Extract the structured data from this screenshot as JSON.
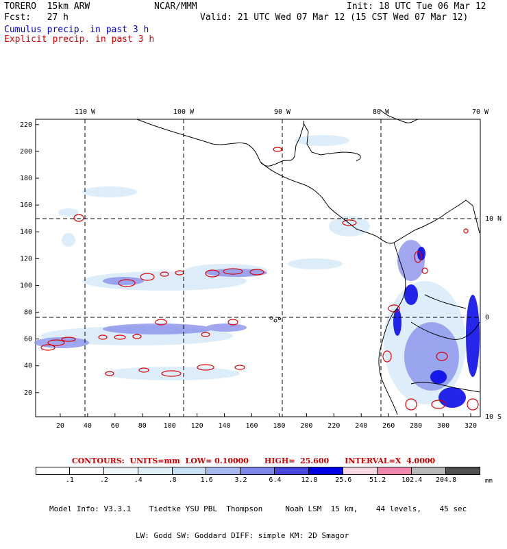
{
  "header": {
    "model": "TORERO  15km ARW",
    "center": "NCAR/MMM",
    "init": "Init: 18 UTC Tue 06 Mar 12",
    "fcst": "Fcst:   27 h",
    "valid": "Valid: 21 UTC Wed 07 Mar 12 (15 CST Wed 07 Mar 12)",
    "legend_cumulus": "Cumulus precip. in past 3 h",
    "legend_explicit": "Explicit precip. in past 3 h"
  },
  "axes": {
    "top_lon_labels": [
      "110 W",
      "100 W",
      "90 W",
      "80 W",
      "70 W"
    ],
    "right_lat_labels": [
      "10 N",
      "0",
      "10 S"
    ],
    "x_ticks": [
      "20",
      "40",
      "60",
      "80",
      "100",
      "120",
      "140",
      "160",
      "180",
      "200",
      "220",
      "240",
      "260",
      "280",
      "300",
      "320"
    ],
    "y_ticks": [
      "20",
      "40",
      "60",
      "80",
      "100",
      "120",
      "140",
      "160",
      "180",
      "200",
      "220"
    ]
  },
  "contours": {
    "text": "CONTOURS:  UNITS=mm  LOW= 0.10000      HIGH=  25.600      INTERVAL=X  4.0000"
  },
  "colorbar": {
    "labels": [
      ".1",
      ".2",
      ".4",
      ".8",
      "1.6",
      "3.2",
      "6.4",
      "12.8",
      "25.6",
      "51.2",
      "102.4",
      "204.8"
    ],
    "colors": [
      "#ffffff",
      "#ffffff",
      "#eef6fa",
      "#dff0f8",
      "#c8e0f4",
      "#a8b8f0",
      "#7f88ea",
      "#4848e0",
      "#0000e6",
      "#f8d8e0",
      "#f088b0",
      "#b8b8b8",
      "#505050",
      "#d8a8f8"
    ],
    "unit": "mm"
  },
  "model_info": {
    "line1": "Model Info: V3.3.1    Tiedtke YSU PBL  Thompson     Noah LSM  15 km,    44 levels,    45 sec",
    "line2": "LW: Godd SW: Goddard DIFF: simple KM: 2D Smagor"
  },
  "colors": {
    "cumulus_contour": "#dd0000",
    "light_precip": "#dfeef8",
    "heavy_precip": "#0000e6"
  }
}
